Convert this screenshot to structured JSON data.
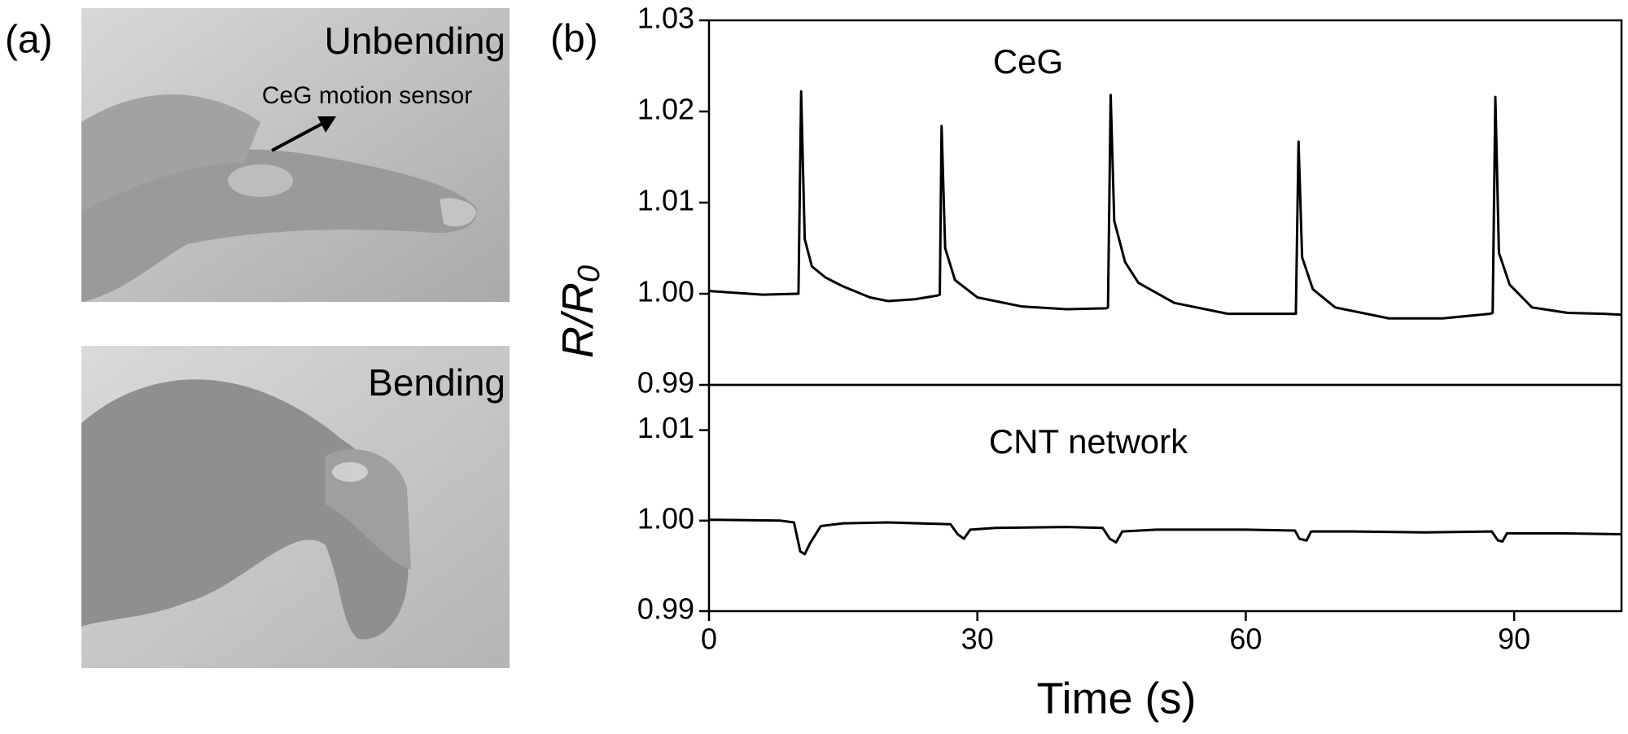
{
  "panel_a": {
    "label": "(a)",
    "photos": [
      {
        "caption": "Unbending",
        "annotation": "CeG motion sensor"
      },
      {
        "caption": "Bending"
      }
    ]
  },
  "panel_b": {
    "label": "(b)"
  },
  "chart_data": [
    {
      "type": "line",
      "text_label": "CeG",
      "ylabel": "R/R",
      "ylabel_subscript": "0",
      "color": "#000000",
      "x": [
        0,
        3,
        6,
        9.8,
        10.0,
        10.3,
        10.7,
        11.5,
        13,
        15,
        18,
        20,
        23,
        25.5,
        25.8,
        26.0,
        26.4,
        27.5,
        30,
        35,
        40,
        44.4,
        44.6,
        44.9,
        45.3,
        46.5,
        48,
        52,
        58,
        62,
        65.6,
        65.9,
        66.3,
        67.5,
        70,
        76,
        82,
        87.3,
        87.6,
        87.9,
        88.3,
        89.5,
        92,
        96,
        100,
        102
      ],
      "values": [
        1.0003,
        1.0001,
        0.9999,
        1.0,
        1.0,
        1.0222,
        1.006,
        1.003,
        1.0018,
        1.0008,
        0.9996,
        0.9992,
        0.9994,
        0.9998,
        0.9999,
        1.0184,
        1.005,
        1.0015,
        0.9996,
        0.9986,
        0.9983,
        0.9984,
        0.9985,
        1.0218,
        1.008,
        1.0035,
        1.0012,
        0.999,
        0.9978,
        0.9978,
        0.9978,
        1.0167,
        1.004,
        1.0005,
        0.9985,
        0.9973,
        0.9973,
        0.9978,
        0.9979,
        1.0216,
        1.0045,
        1.001,
        0.9985,
        0.9979,
        0.9978,
        0.9977
      ],
      "xlim": [
        0,
        102
      ],
      "ylim": [
        0.99,
        1.03
      ],
      "yticks": [
        0.99,
        {
          "value": 1,
          "label": "1.00"
        },
        1.01,
        1.02,
        1.03
      ]
    },
    {
      "type": "line",
      "text_label": "CNT network",
      "xlabel": "Time (s)",
      "color": "#000000",
      "x": [
        0,
        8,
        9.5,
        10.2,
        10.7,
        11.3,
        12.5,
        15,
        20,
        27,
        27.8,
        28.5,
        29.2,
        32,
        40,
        44,
        44.8,
        45.5,
        46.2,
        50,
        60,
        65.5,
        66,
        66.8,
        67.3,
        72,
        80,
        87.5,
        88.2,
        88.7,
        89.2,
        95,
        102
      ],
      "values": [
        1.0001,
        1.0,
        0.9998,
        0.9966,
        0.9963,
        0.9975,
        0.9994,
        0.9997,
        0.9998,
        0.9996,
        0.9985,
        0.998,
        0.999,
        0.9992,
        0.9993,
        0.9992,
        0.998,
        0.9976,
        0.9988,
        0.999,
        0.999,
        0.9989,
        0.998,
        0.9978,
        0.9988,
        0.9988,
        0.9987,
        0.9988,
        0.9978,
        0.9977,
        0.9986,
        0.9986,
        0.9985
      ],
      "xlim": [
        0,
        102
      ],
      "ylim": [
        0.99,
        1.015
      ],
      "xticks": [
        0,
        30,
        60,
        90
      ],
      "yticks": [
        0.99,
        {
          "value": 1,
          "label": "1.00"
        },
        1.01
      ]
    }
  ]
}
